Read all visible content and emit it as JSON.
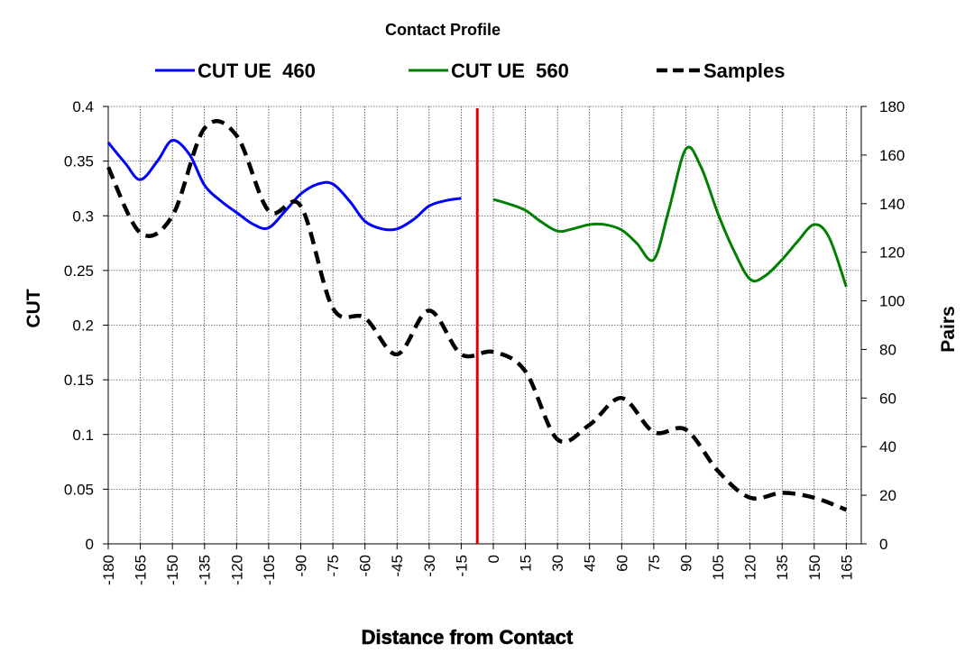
{
  "chart_data": {
    "type": "line",
    "title": "Contact Profile",
    "xlabel": "Distance from Contact",
    "ylabel_left": "CUT",
    "ylabel_right": "Pairs",
    "y_left_lim": [
      0,
      0.4
    ],
    "y_right_lim": [
      0,
      180
    ],
    "y_left_ticks": [
      "0",
      "0.05",
      "0.1",
      "0.15",
      "0.2",
      "0.25",
      "0.3",
      "0.35",
      "0.4"
    ],
    "y_right_ticks": [
      "0",
      "20",
      "40",
      "60",
      "80",
      "100",
      "120",
      "140",
      "160",
      "180"
    ],
    "x_ticks": [
      "-180",
      "-165",
      "-150",
      "-135",
      "-120",
      "-105",
      "-90",
      "-75",
      "-60",
      "-45",
      "-30",
      "-15",
      "0",
      "15",
      "30",
      "45",
      "60",
      "75",
      "90",
      "105",
      "120",
      "135",
      "150",
      "165"
    ],
    "x_range": [
      -180,
      172
    ],
    "grid": true,
    "legend_position": "top",
    "contact_line_x": -7.5,
    "contact_line_color": "#dd0000",
    "series": [
      {
        "name": "CUT UE  460",
        "axis": "left",
        "color": "#0000ff",
        "style": "solid",
        "x": [
          -180,
          -172,
          -165,
          -157,
          -150,
          -142,
          -135,
          -127,
          -120,
          -112,
          -105,
          -97,
          -90,
          -82,
          -75,
          -67,
          -60,
          -52,
          -45,
          -37,
          -30,
          -22,
          -15
        ],
        "y": [
          0.367,
          0.348,
          0.333,
          0.35,
          0.369,
          0.356,
          0.328,
          0.313,
          0.303,
          0.292,
          0.289,
          0.305,
          0.32,
          0.329,
          0.329,
          0.313,
          0.295,
          0.288,
          0.288,
          0.297,
          0.309,
          0.314,
          0.316
        ]
      },
      {
        "name": "CUT UE  560",
        "axis": "left",
        "color": "#008000",
        "style": "solid",
        "x": [
          0,
          7,
          15,
          22,
          30,
          37,
          45,
          52,
          60,
          67,
          75,
          82,
          90,
          97,
          105,
          112,
          120,
          127,
          135,
          142,
          150,
          157,
          165
        ],
        "y": [
          0.315,
          0.311,
          0.305,
          0.295,
          0.286,
          0.288,
          0.292,
          0.292,
          0.287,
          0.275,
          0.26,
          0.305,
          0.361,
          0.345,
          0.302,
          0.27,
          0.242,
          0.245,
          0.26,
          0.276,
          0.292,
          0.28,
          0.235
        ]
      },
      {
        "name": "Samples",
        "axis": "right",
        "color": "#000000",
        "style": "dashed",
        "x": [
          -180,
          -165,
          -150,
          -135,
          -120,
          -105,
          -90,
          -75,
          -60,
          -45,
          -30,
          -15,
          0,
          15,
          30,
          45,
          60,
          75,
          90,
          105,
          120,
          135,
          150,
          165
        ],
        "y": [
          155,
          128,
          135,
          171,
          168,
          137,
          139,
          97,
          93,
          78,
          96,
          78,
          79,
          71,
          43,
          49,
          60,
          46,
          47,
          30,
          19,
          21,
          19,
          14
        ]
      }
    ]
  }
}
